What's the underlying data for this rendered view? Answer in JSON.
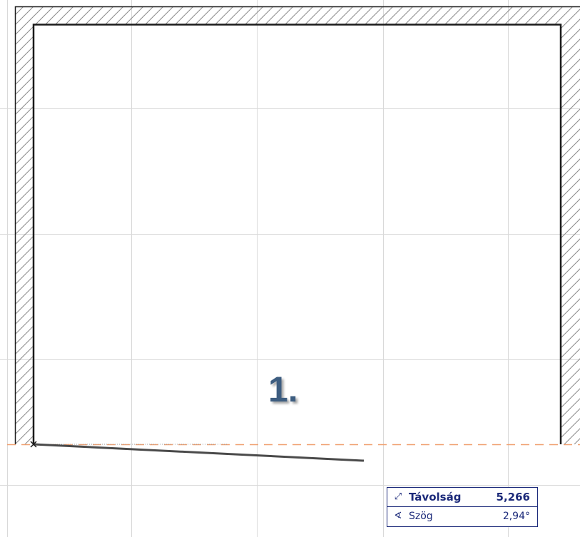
{
  "step": {
    "label": "1."
  },
  "tracker": {
    "distance": {
      "icon": "distance-arrow-icon",
      "label": "Távolság",
      "value": "5,266"
    },
    "angle": {
      "icon": "angle-icon",
      "label": "Szög",
      "value": "2,94°"
    }
  },
  "colors": {
    "wall_line": "#1a1a1a",
    "hatch": "#8a8a8a",
    "grid": "#d9d9d9",
    "guide": "#f0a070",
    "rubber_band": "#4a4a4a",
    "tracker_border": "#1c2a7a",
    "step_label": "#3d5d80"
  }
}
